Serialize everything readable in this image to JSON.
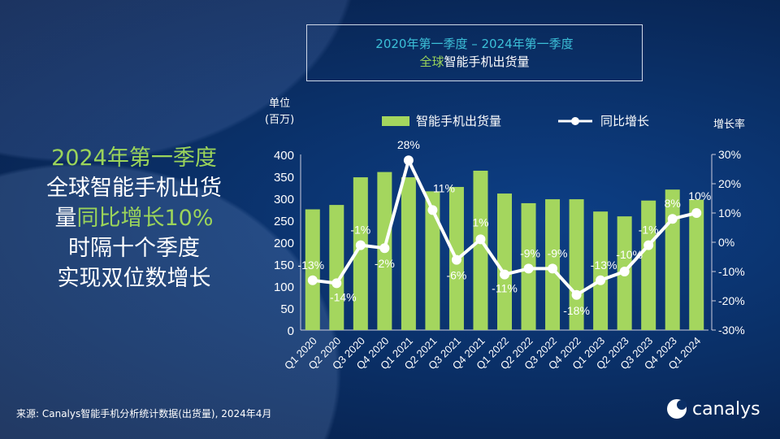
{
  "title": {
    "line1": "2020年第一季度 – 2024年第一季度",
    "line2_green": "全球",
    "line2_white": "智能手机出货量"
  },
  "headline": {
    "l1": "2024年第一季度",
    "l2": "全球智能手机出货",
    "l3a": "量",
    "l3b": "同比增长10%",
    "l4": "时隔十个季度",
    "l5": "实现双位数增长"
  },
  "source": "来源: Canalys智能手机分析统计数据(出货量), 2024年4月",
  "logo": "canalys",
  "colors": {
    "bars": "#a4d65e",
    "line": "#ffffff",
    "background": "#0a2f66"
  },
  "chart_data": {
    "type": "bar+line",
    "categories": [
      "Q1 2020",
      "Q2 2020",
      "Q3 2020",
      "Q4 2020",
      "Q1 2021",
      "Q2 2021",
      "Q3 2021",
      "Q4 2021",
      "Q1 2022",
      "Q2 2022",
      "Q3 2022",
      "Q4 2022",
      "Q1 2023",
      "Q2 2023",
      "Q3 2023",
      "Q4 2023",
      "Q1 2024"
    ],
    "series": [
      {
        "name": "智能手机出货量",
        "type": "bar",
        "axis": "left",
        "values": [
          275,
          285,
          348,
          360,
          348,
          316,
          326,
          363,
          311,
          289,
          298,
          298,
          270,
          259,
          295,
          320,
          297
        ]
      },
      {
        "name": "同比增长",
        "type": "line",
        "axis": "right",
        "values": [
          -13,
          -14,
          -1,
          -2,
          28,
          11,
          -6,
          1,
          -11,
          -9,
          -9,
          -18,
          -13,
          -10,
          -1,
          8,
          10
        ],
        "labels": [
          "-13%",
          "-14%",
          "-1%",
          "-2%",
          "28%",
          "11%",
          "-6%",
          "1%",
          "-11%",
          "-9%",
          "-9%",
          "-18%",
          "-13%",
          "-10%",
          "-1%",
          "8%",
          "10%"
        ]
      }
    ],
    "ylabel": [
      "单位",
      "(百万)"
    ],
    "y2label": "增长率",
    "ylim": [
      0,
      400
    ],
    "yticks": [
      "0",
      "50",
      "100",
      "150",
      "200",
      "250",
      "300",
      "350",
      "400"
    ],
    "y2lim": [
      -30,
      30
    ],
    "y2ticks": [
      "-30%",
      "-20%",
      "-10%",
      "0%",
      "10%",
      "20%",
      "30%"
    ],
    "legend": "top",
    "grid": false
  }
}
